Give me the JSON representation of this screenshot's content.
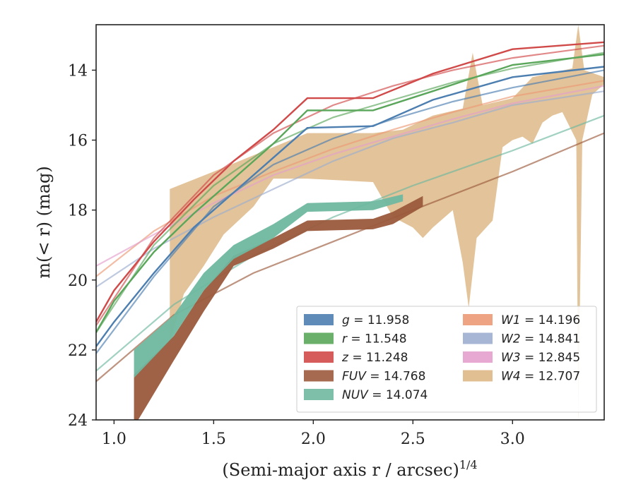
{
  "chart_data": {
    "type": "line",
    "xlabel": "(Semi-major axis r / arcsec)",
    "xlabel_superscript": "1/4",
    "ylabel": "m(< r) (mag)",
    "xlim": [
      0.91,
      3.46
    ],
    "ylim": [
      24,
      12.7
    ],
    "y_inverted": true,
    "xticks": [
      1.0,
      1.5,
      2.0,
      2.5,
      3.0
    ],
    "xtick_labels": [
      "1.0",
      "1.5",
      "2.0",
      "2.5",
      "3.0"
    ],
    "yticks": [
      14,
      16,
      18,
      20,
      22,
      24
    ],
    "ytick_labels": [
      "14",
      "16",
      "18",
      "20",
      "22",
      "24"
    ],
    "grid": false,
    "legend_position": "lower-right",
    "legend": [
      {
        "label": "g = 11.958",
        "band": "g",
        "value": "11.958"
      },
      {
        "label": "r = 11.548",
        "band": "r",
        "value": "11.548"
      },
      {
        "label": "z = 11.248",
        "band": "z",
        "value": "11.248"
      },
      {
        "label": "FUV = 14.768",
        "band": "FUV",
        "value": "14.768"
      },
      {
        "label": "NUV = 14.074",
        "band": "NUV",
        "value": "14.074"
      },
      {
        "label": "W1 = 14.196",
        "band": "W1",
        "value": "14.196"
      },
      {
        "label": "W2 = 14.841",
        "band": "W2",
        "value": "14.841"
      },
      {
        "label": "W3 = 12.845",
        "band": "W3",
        "value": "12.845"
      },
      {
        "label": "W4 = 12.707",
        "band": "W4",
        "value": "12.707"
      }
    ],
    "series": [
      {
        "name": "g",
        "color": "#4c7eb0",
        "data": [
          [
            0.91,
            21.9
          ],
          [
            1.0,
            21.2
          ],
          [
            1.2,
            19.8
          ],
          [
            1.4,
            18.5
          ],
          [
            1.6,
            17.5
          ],
          [
            1.8,
            16.5
          ],
          [
            1.97,
            15.65
          ],
          [
            2.3,
            15.6
          ],
          [
            2.6,
            14.85
          ],
          [
            3.0,
            14.2
          ],
          [
            3.46,
            13.9
          ]
        ],
        "model": [
          [
            0.91,
            22.1
          ],
          [
            1.2,
            19.9
          ],
          [
            1.5,
            17.9
          ],
          [
            1.8,
            16.7
          ],
          [
            2.1,
            15.95
          ],
          [
            2.4,
            15.4
          ],
          [
            2.7,
            14.9
          ],
          [
            3.0,
            14.5
          ],
          [
            3.46,
            14.0
          ]
        ]
      },
      {
        "name": "r",
        "color": "#5aa65a",
        "data": [
          [
            0.91,
            21.5
          ],
          [
            1.0,
            20.6
          ],
          [
            1.2,
            19.2
          ],
          [
            1.4,
            18.1
          ],
          [
            1.6,
            17.1
          ],
          [
            1.8,
            16.1
          ],
          [
            1.97,
            15.15
          ],
          [
            2.3,
            15.15
          ],
          [
            2.6,
            14.6
          ],
          [
            3.0,
            13.85
          ],
          [
            3.46,
            13.55
          ]
        ],
        "model": [
          [
            0.91,
            21.5
          ],
          [
            1.2,
            19.0
          ],
          [
            1.5,
            17.3
          ],
          [
            1.8,
            16.1
          ],
          [
            2.1,
            15.35
          ],
          [
            2.4,
            14.85
          ],
          [
            2.7,
            14.35
          ],
          [
            3.0,
            13.95
          ],
          [
            3.46,
            13.5
          ]
        ]
      },
      {
        "name": "z",
        "color": "#d14a4a",
        "data": [
          [
            0.91,
            21.2
          ],
          [
            1.0,
            20.3
          ],
          [
            1.2,
            18.9
          ],
          [
            1.4,
            17.7
          ],
          [
            1.6,
            16.6
          ],
          [
            1.8,
            15.7
          ],
          [
            1.97,
            14.8
          ],
          [
            2.3,
            14.8
          ],
          [
            2.6,
            14.1
          ],
          [
            3.0,
            13.4
          ],
          [
            3.46,
            13.2
          ]
        ],
        "model": [
          [
            0.91,
            21.3
          ],
          [
            1.2,
            18.8
          ],
          [
            1.5,
            17.0
          ],
          [
            1.8,
            15.8
          ],
          [
            2.1,
            15.0
          ],
          [
            2.4,
            14.45
          ],
          [
            2.7,
            14.0
          ],
          [
            3.0,
            13.65
          ],
          [
            3.46,
            13.3
          ]
        ]
      },
      {
        "name": "FUV",
        "color": "#9b5a3c",
        "data_upper": [
          [
            1.1,
            22.7
          ],
          [
            1.3,
            21.6
          ],
          [
            1.45,
            20.3
          ],
          [
            1.6,
            19.3
          ],
          [
            1.8,
            18.8
          ],
          [
            1.97,
            18.3
          ],
          [
            2.3,
            18.25
          ],
          [
            2.4,
            18.05
          ],
          [
            2.55,
            17.6
          ]
        ],
        "data_lower": [
          [
            1.1,
            24.2
          ],
          [
            1.3,
            22.3
          ],
          [
            1.45,
            20.9
          ],
          [
            1.6,
            19.6
          ],
          [
            1.8,
            19.1
          ],
          [
            1.97,
            18.6
          ],
          [
            2.3,
            18.55
          ],
          [
            2.4,
            18.4
          ],
          [
            2.55,
            17.9
          ]
        ],
        "model": [
          [
            0.91,
            22.9
          ],
          [
            1.3,
            21.0
          ],
          [
            1.7,
            19.8
          ],
          [
            2.1,
            18.9
          ],
          [
            2.5,
            18.0
          ],
          [
            3.0,
            16.9
          ],
          [
            3.46,
            15.8
          ]
        ]
      },
      {
        "name": "NUV",
        "color": "#6fb8a0",
        "data_upper": [
          [
            1.1,
            22.0
          ],
          [
            1.3,
            21.0
          ],
          [
            1.45,
            19.8
          ],
          [
            1.6,
            19.0
          ],
          [
            1.8,
            18.4
          ],
          [
            1.97,
            17.8
          ],
          [
            2.3,
            17.75
          ],
          [
            2.45,
            17.55
          ]
        ],
        "data_lower": [
          [
            1.1,
            22.8
          ],
          [
            1.3,
            21.6
          ],
          [
            1.45,
            20.3
          ],
          [
            1.6,
            19.4
          ],
          [
            1.8,
            18.8
          ],
          [
            1.97,
            18.05
          ],
          [
            2.3,
            18.0
          ],
          [
            2.45,
            17.75
          ]
        ],
        "model": [
          [
            0.91,
            22.6
          ],
          [
            1.3,
            20.7
          ],
          [
            1.7,
            19.3
          ],
          [
            2.1,
            18.2
          ],
          [
            2.5,
            17.3
          ],
          [
            3.0,
            16.3
          ],
          [
            3.46,
            15.3
          ]
        ]
      },
      {
        "name": "W1",
        "color": "#ec9a74",
        "model": [
          [
            0.91,
            19.9
          ],
          [
            1.2,
            18.6
          ],
          [
            1.5,
            17.6
          ],
          [
            1.8,
            16.9
          ],
          [
            2.1,
            16.25
          ],
          [
            2.4,
            15.7
          ],
          [
            2.7,
            15.2
          ],
          [
            3.0,
            14.75
          ],
          [
            3.46,
            14.3
          ]
        ]
      },
      {
        "name": "W2",
        "color": "#9daed0",
        "model": [
          [
            0.91,
            20.2
          ],
          [
            1.2,
            19.1
          ],
          [
            1.5,
            18.2
          ],
          [
            1.8,
            17.4
          ],
          [
            2.1,
            16.6
          ],
          [
            2.4,
            15.95
          ],
          [
            2.7,
            15.5
          ],
          [
            3.0,
            15.0
          ],
          [
            3.46,
            14.6
          ]
        ]
      },
      {
        "name": "W3",
        "color": "#e4a0cc",
        "model": [
          [
            0.91,
            19.6
          ],
          [
            1.2,
            18.7
          ],
          [
            1.5,
            17.8
          ],
          [
            1.8,
            17.0
          ],
          [
            2.1,
            16.4
          ],
          [
            2.4,
            15.9
          ],
          [
            2.7,
            15.4
          ],
          [
            3.0,
            14.95
          ],
          [
            3.46,
            14.45
          ]
        ]
      },
      {
        "name": "W4",
        "color": "#deb887",
        "band_upper": [
          [
            1.28,
            17.4
          ],
          [
            1.5,
            16.9
          ],
          [
            1.8,
            16.2
          ],
          [
            1.97,
            15.8
          ],
          [
            2.3,
            15.8
          ],
          [
            2.45,
            15.7
          ],
          [
            2.6,
            15.3
          ],
          [
            2.75,
            15.1
          ],
          [
            2.8,
            13.5
          ],
          [
            2.85,
            15.0
          ],
          [
            3.0,
            14.8
          ],
          [
            3.1,
            14.2
          ],
          [
            3.3,
            13.95
          ],
          [
            3.33,
            12.7
          ],
          [
            3.36,
            14.0
          ],
          [
            3.46,
            14.2
          ]
        ],
        "band_lower": [
          [
            1.28,
            21.8
          ],
          [
            1.35,
            20.4
          ],
          [
            1.45,
            19.6
          ],
          [
            1.55,
            18.7
          ],
          [
            1.7,
            17.9
          ],
          [
            1.8,
            17.1
          ],
          [
            1.97,
            17.1
          ],
          [
            2.3,
            17.2
          ],
          [
            2.4,
            18.2
          ],
          [
            2.5,
            18.5
          ],
          [
            2.55,
            18.8
          ],
          [
            2.6,
            18.5
          ],
          [
            2.7,
            18.0
          ],
          [
            2.75,
            19.5
          ],
          [
            2.78,
            20.8
          ],
          [
            2.82,
            18.8
          ],
          [
            2.9,
            18.3
          ],
          [
            2.95,
            16.2
          ],
          [
            3.0,
            16.0
          ],
          [
            3.05,
            15.9
          ],
          [
            3.1,
            16.1
          ],
          [
            3.15,
            15.5
          ],
          [
            3.2,
            15.3
          ],
          [
            3.25,
            15.2
          ],
          [
            3.32,
            16.0
          ],
          [
            3.33,
            24.0
          ],
          [
            3.35,
            16.0
          ],
          [
            3.4,
            14.7
          ],
          [
            3.46,
            14.4
          ]
        ]
      }
    ]
  }
}
